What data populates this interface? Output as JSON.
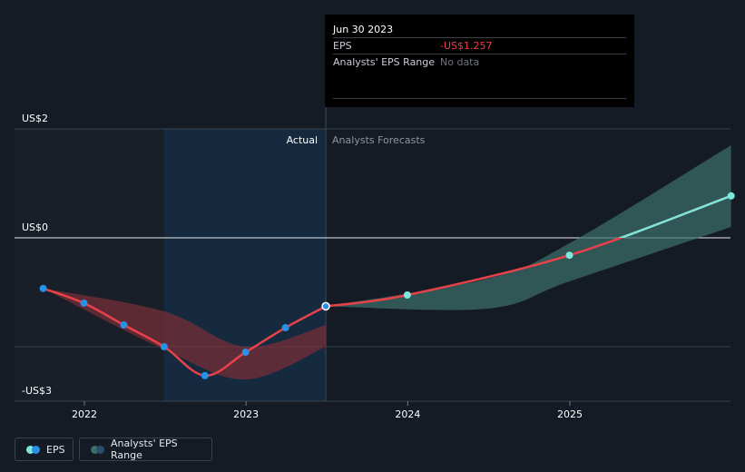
{
  "tooltip": {
    "date": "Jun 30 2023",
    "eps_label": "EPS",
    "eps_value": "-US$1.257",
    "range_label": "Analysts' EPS Range",
    "range_value": "No data"
  },
  "sections": {
    "actual": "Actual",
    "forecast": "Analysts Forecasts"
  },
  "legend": {
    "eps": "EPS",
    "range": "Analysts' EPS Range"
  },
  "colors": {
    "eps_actual": "#e8414a",
    "eps_forecast": "#7de7dd",
    "point_actual": "#2a8fe6",
    "range_actual": "#7a2f38",
    "range_forecast": "#3c6f6c",
    "highlight_band": "#152a3e",
    "past_band": "#191f28"
  },
  "chart_data": {
    "type": "line",
    "y_axis": {
      "min": -3,
      "max": 2,
      "ticks": [
        "US$2",
        "US$0",
        "-US$3"
      ],
      "tick_values": [
        2,
        0,
        -3
      ]
    },
    "x_axis": {
      "ticks": [
        "2022",
        "2023",
        "2024",
        "2025"
      ]
    },
    "series": [
      {
        "name": "EPS",
        "kind": "actual",
        "x": [
          "2021-09-30",
          "2021-12-31",
          "2022-03-31",
          "2022-06-30",
          "2022-09-30",
          "2022-12-31",
          "2023-03-31",
          "2023-06-30"
        ],
        "values": [
          -0.93,
          -1.2,
          -1.6,
          -2.0,
          -2.53,
          -2.1,
          -1.65,
          -1.257
        ]
      },
      {
        "name": "EPS",
        "kind": "forecast",
        "x": [
          "2023-06-30",
          "2023-12-31",
          "2024-12-31",
          "2025-12-31"
        ],
        "values": [
          -1.257,
          -1.05,
          -0.32,
          0.77
        ]
      }
    ],
    "ranges": [
      {
        "name": "Analysts' EPS Range",
        "kind": "actual",
        "x": [
          "2021-09-30",
          "2022-06-30",
          "2022-12-31",
          "2023-06-30"
        ],
        "high": [
          -0.93,
          -1.35,
          -2.0,
          -1.6
        ],
        "low": [
          -0.93,
          -2.05,
          -2.6,
          -2.0
        ]
      },
      {
        "name": "Analysts' EPS Range",
        "kind": "forecast",
        "x": [
          "2023-06-30",
          "2024-06-30",
          "2024-12-31",
          "2025-12-31"
        ],
        "high": [
          -1.257,
          -0.75,
          -0.1,
          1.7
        ],
        "low": [
          -1.257,
          -1.3,
          -0.8,
          0.2
        ]
      }
    ]
  }
}
